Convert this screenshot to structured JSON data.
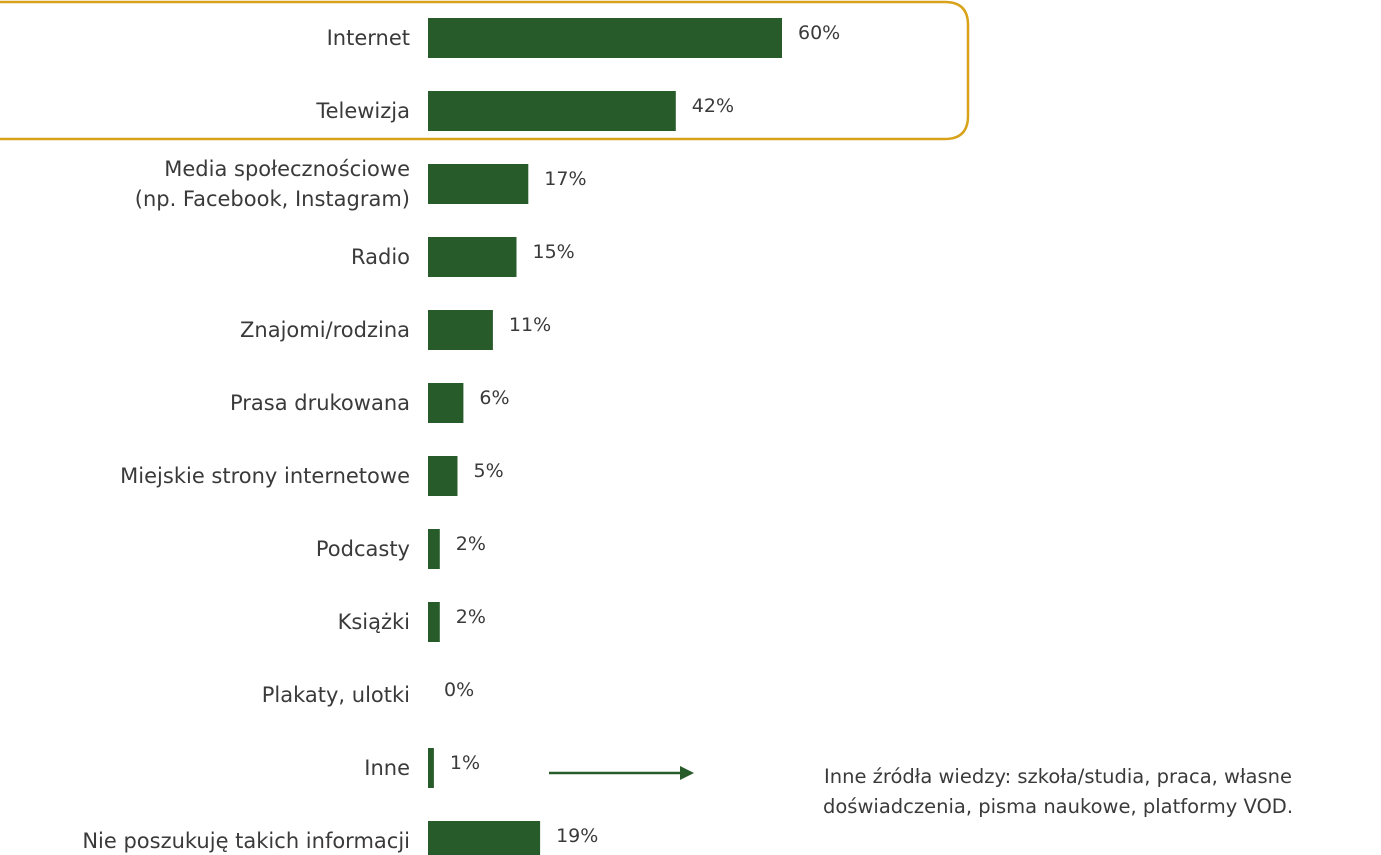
{
  "chart_data": {
    "type": "bar",
    "orientation": "horizontal",
    "categories": [
      [
        "Internet"
      ],
      [
        "Telewizja"
      ],
      [
        "Media społecznościowe",
        "(np. Facebook, Instagram)"
      ],
      [
        "Radio"
      ],
      [
        "Znajomi/rodzina"
      ],
      [
        "Prasa drukowana"
      ],
      [
        "Miejskie strony internetowe"
      ],
      [
        "Podcasty"
      ],
      [
        "Książki"
      ],
      [
        "Plakaty, ulotki"
      ],
      [
        "Inne"
      ],
      [
        "Nie poszukuję takich informacji"
      ]
    ],
    "values": [
      60,
      42,
      17,
      15,
      11,
      6,
      5,
      2,
      2,
      0,
      1,
      19
    ],
    "value_labels": [
      "60%",
      "42%",
      "17%",
      "15%",
      "11%",
      "6%",
      "5%",
      "2%",
      "2%",
      "0%",
      "1%",
      "19%"
    ],
    "value_unit": "%",
    "bar_color": "#285b2a",
    "highlight_color": "#d9a21b",
    "highlighted_categories": [
      0,
      1
    ],
    "grid": false,
    "legend": false,
    "annotation": {
      "target_category": 10,
      "arrow_color": "#285b2a",
      "lines": [
        "Inne źródła wiedzy: szkoła/studia, praca, własne",
        "doświadczenia, pisma naukowe, platformy VOD."
      ]
    }
  }
}
